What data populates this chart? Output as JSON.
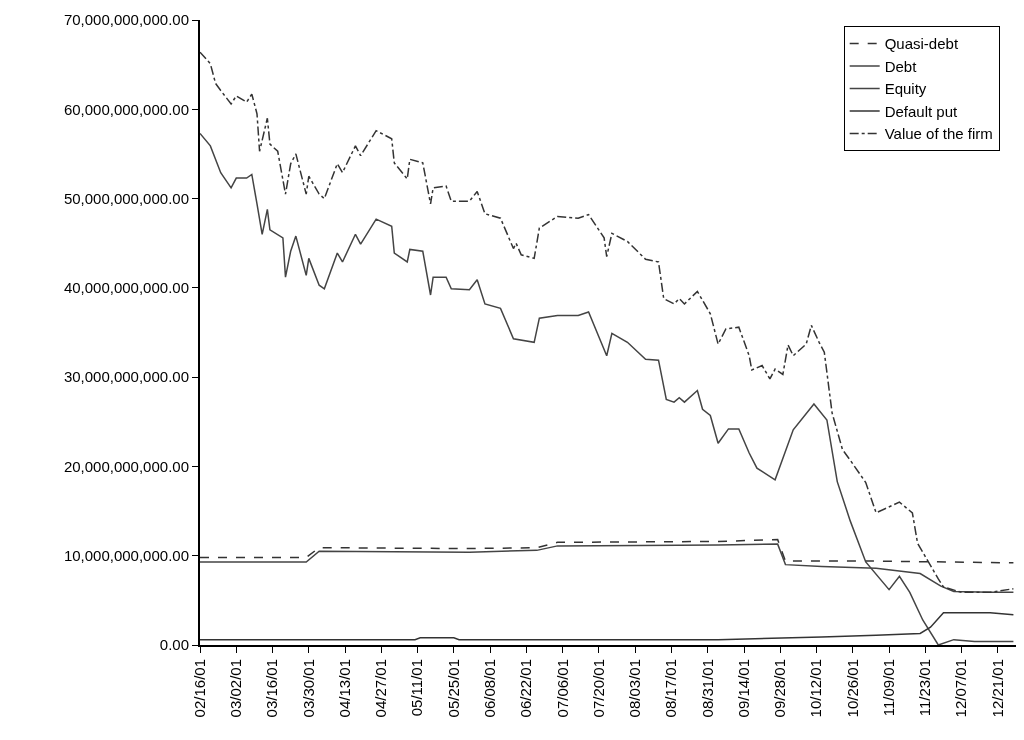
{
  "chart_data": {
    "type": "line",
    "legend": "top right",
    "grid": false,
    "marker": "none",
    "xlim": [
      "--02-16",
      "--12-28"
    ],
    "xticks": [
      {
        "value": "--02-16",
        "label": "02/16/01"
      },
      {
        "value": "--03-02",
        "label": "03/02/01"
      },
      {
        "value": "--03-16",
        "label": "03/16/01"
      },
      {
        "value": "--03-30",
        "label": "03/30/01"
      },
      {
        "value": "--04-13",
        "label": "04/13/01"
      },
      {
        "value": "--04-27",
        "label": "04/27/01"
      },
      {
        "value": "--05-11",
        "label": "05/11/01"
      },
      {
        "value": "--05-25",
        "label": "05/25/01"
      },
      {
        "value": "--06-08",
        "label": "06/08/01"
      },
      {
        "value": "--06-22",
        "label": "06/22/01"
      },
      {
        "value": "--07-06",
        "label": "07/06/01"
      },
      {
        "value": "--07-20",
        "label": "07/20/01"
      },
      {
        "value": "--08-03",
        "label": "08/03/01"
      },
      {
        "value": "--08-17",
        "label": "08/17/01"
      },
      {
        "value": "--08-31",
        "label": "08/31/01"
      },
      {
        "value": "--09-14",
        "label": "09/14/01"
      },
      {
        "value": "--09-28",
        "label": "09/28/01"
      },
      {
        "value": "--10-12",
        "label": "10/12/01"
      },
      {
        "value": "--10-26",
        "label": "10/26/01"
      },
      {
        "value": "--11-09",
        "label": "11/09/01"
      },
      {
        "value": "--11-23",
        "label": "11/23/01"
      },
      {
        "value": "--12-07",
        "label": "12/07/01"
      },
      {
        "value": "--12-21",
        "label": "12/21/01"
      }
    ],
    "ylim": [
      0,
      70000000000
    ],
    "yticks": [
      {
        "value": 0,
        "label": "0.00"
      },
      {
        "value": 10000000000,
        "label": "10,000,000,000.00"
      },
      {
        "value": 20000000000,
        "label": "20,000,000,000.00"
      },
      {
        "value": 30000000000,
        "label": "30,000,000,000.00"
      },
      {
        "value": 40000000000,
        "label": "40,000,000,000.00"
      },
      {
        "value": 50000000000,
        "label": "50,000,000,000.00"
      },
      {
        "value": 60000000000,
        "label": "60,000,000,000.00"
      },
      {
        "value": 70000000000,
        "label": "70,000,000,000.00"
      }
    ],
    "series": [
      {
        "name": "Quasi-debt",
        "color": "#333333",
        "line_style": "dashed",
        "x": [
          "--02-16",
          "--03-29",
          "--04-03",
          "--05-31",
          "--06-26",
          "--07-04",
          "--09-04",
          "--09-27",
          "--09-30",
          "--11-04",
          "--12-27"
        ],
        "values": [
          9800000000,
          9800000000,
          10900000000,
          10800000000,
          10900000000,
          11500000000,
          11600000000,
          11800000000,
          9400000000,
          9400000000,
          9200000000
        ]
      },
      {
        "name": "Debt",
        "color": "#444444",
        "line_style": "solid",
        "x": [
          "--02-16",
          "--03-29",
          "--04-03",
          "--05-31",
          "--06-26",
          "--07-04",
          "--09-04",
          "--09-27",
          "--09-30",
          "--10-14",
          "--11-04",
          "--11-21",
          "--11-29",
          "--12-04",
          "--12-18",
          "--12-27"
        ],
        "values": [
          9300000000,
          9300000000,
          10500000000,
          10400000000,
          10600000000,
          11100000000,
          11200000000,
          11300000000,
          9000000000,
          8800000000,
          8600000000,
          8000000000,
          6600000000,
          6000000000,
          5900000000,
          5900000000
        ]
      },
      {
        "name": "Equity",
        "color": "#444444",
        "line_style": "solid",
        "x": [
          "--02-16",
          "--02-20",
          "--02-24",
          "--02-28",
          "--03-02",
          "--03-06",
          "--03-08",
          "--03-10",
          "--03-12",
          "--03-14",
          "--03-15",
          "--03-20",
          "--03-21",
          "--03-23",
          "--03-25",
          "--03-29",
          "--03-30",
          "--04-03",
          "--04-05",
          "--04-10",
          "--04-12",
          "--04-17",
          "--04-19",
          "--04-25",
          "--05-01",
          "--05-02",
          "--05-07",
          "--05-08",
          "--05-13",
          "--05-16",
          "--05-17",
          "--05-22",
          "--05-24",
          "--05-31",
          "--06-03",
          "--06-06",
          "--06-12",
          "--06-17",
          "--06-25",
          "--06-27",
          "--07-04",
          "--07-12",
          "--07-16",
          "--07-23",
          "--07-25",
          "--07-31",
          "--08-07",
          "--08-12",
          "--08-15",
          "--08-18",
          "--08-20",
          "--08-22",
          "--08-27",
          "--08-29",
          "--09-01",
          "--09-04",
          "--09-08",
          "--09-12",
          "--09-16",
          "--09-19",
          "--09-26",
          "--10-03",
          "--10-11",
          "--10-16",
          "--10-20",
          "--10-25",
          "--10-31",
          "--11-09",
          "--11-13",
          "--11-17",
          "--11-22",
          "--11-28",
          "--12-04",
          "--12-12",
          "--12-27"
        ],
        "values": [
          57300000000,
          55900000000,
          52900000000,
          51200000000,
          52300000000,
          52300000000,
          52700000000,
          49400000000,
          46000000000,
          48800000000,
          46500000000,
          45600000000,
          41200000000,
          44100000000,
          45800000000,
          41400000000,
          43300000000,
          40300000000,
          39900000000,
          43900000000,
          42900000000,
          46000000000,
          44900000000,
          47700000000,
          46900000000,
          43900000000,
          42900000000,
          44300000000,
          44100000000,
          39200000000,
          41200000000,
          41200000000,
          39900000000,
          39800000000,
          40900000000,
          38200000000,
          37700000000,
          34300000000,
          33900000000,
          36600000000,
          36900000000,
          36900000000,
          37300000000,
          32400000000,
          34900000000,
          33900000000,
          32000000000,
          31900000000,
          27500000000,
          27200000000,
          27700000000,
          27200000000,
          28500000000,
          26400000000,
          25700000000,
          22600000000,
          24200000000,
          24200000000,
          21500000000,
          19800000000,
          18500000000,
          24100000000,
          27000000000,
          25200000000,
          18300000000,
          13900000000,
          9300000000,
          6200000000,
          7700000000,
          5900000000,
          2800000000,
          0,
          600000000,
          400000000,
          400000000
        ]
      },
      {
        "name": "Default put",
        "color": "#333333",
        "line_style": "solid",
        "x": [
          "--02-16",
          "--05-10",
          "--05-12",
          "--05-25",
          "--05-27",
          "--09-04",
          "--10-14",
          "--11-04",
          "--11-21",
          "--11-25",
          "--11-30",
          "--12-18",
          "--12-27"
        ],
        "values": [
          600000000,
          600000000,
          800000000,
          800000000,
          600000000,
          600000000,
          900000000,
          1100000000,
          1300000000,
          2000000000,
          3600000000,
          3600000000,
          3400000000
        ]
      },
      {
        "name": "Value of the firm",
        "color": "#333333",
        "line_style": "dashdot",
        "x": [
          "--02-16",
          "--02-20",
          "--02-22",
          "--02-24",
          "--02-28",
          "--03-02",
          "--03-06",
          "--03-08",
          "--03-10",
          "--03-11",
          "--03-14",
          "--03-15",
          "--03-18",
          "--03-21",
          "--03-23",
          "--03-25",
          "--03-29",
          "--03-30",
          "--04-03",
          "--04-05",
          "--04-10",
          "--04-12",
          "--04-17",
          "--04-19",
          "--04-25",
          "--05-01",
          "--05-02",
          "--05-07",
          "--05-08",
          "--05-13",
          "--05-16",
          "--05-17",
          "--05-22",
          "--05-24",
          "--05-31",
          "--06-03",
          "--06-06",
          "--06-12",
          "--06-17",
          "--06-18",
          "--06-20",
          "--06-25",
          "--06-27",
          "--07-04",
          "--07-12",
          "--07-16",
          "--07-22",
          "--07-23",
          "--07-25",
          "--07-31",
          "--08-07",
          "--08-12",
          "--08-14",
          "--08-18",
          "--08-20",
          "--08-22",
          "--08-27",
          "--09-01",
          "--09-04",
          "--09-07",
          "--09-12",
          "--09-16",
          "--09-17",
          "--09-21",
          "--09-24",
          "--09-26",
          "--09-29",
          "--10-01",
          "--10-03",
          "--10-08",
          "--10-10",
          "--10-13",
          "--10-15",
          "--10-18",
          "--10-22",
          "--10-25",
          "--10-31",
          "--11-04",
          "--11-13",
          "--11-18",
          "--11-20",
          "--11-28",
          "--11-30",
          "--12-07",
          "--12-18",
          "--12-27"
        ],
        "values": [
          66400000000,
          65100000000,
          62900000000,
          62100000000,
          60600000000,
          61500000000,
          60800000000,
          61700000000,
          59500000000,
          55300000000,
          59000000000,
          56100000000,
          55300000000,
          50500000000,
          53900000000,
          55000000000,
          50500000000,
          52500000000,
          50500000000,
          50000000000,
          53900000000,
          52900000000,
          55900000000,
          54800000000,
          57600000000,
          56700000000,
          54000000000,
          52200000000,
          54400000000,
          54000000000,
          49400000000,
          51200000000,
          51400000000,
          49700000000,
          49700000000,
          50800000000,
          48300000000,
          47800000000,
          44400000000,
          45000000000,
          43700000000,
          43300000000,
          46700000000,
          48000000000,
          47800000000,
          48200000000,
          45600000000,
          43500000000,
          46100000000,
          45200000000,
          43200000000,
          42900000000,
          38800000000,
          38200000000,
          38800000000,
          38200000000,
          39600000000,
          37100000000,
          33700000000,
          35400000000,
          35600000000,
          32400000000,
          30800000000,
          31300000000,
          29800000000,
          30900000000,
          30300000000,
          33600000000,
          32400000000,
          33700000000,
          35800000000,
          33900000000,
          32800000000,
          26000000000,
          21900000000,
          20700000000,
          18200000000,
          14800000000,
          16000000000,
          14800000000,
          11400000000,
          7400000000,
          6500000000,
          5900000000,
          5900000000,
          6300000000
        ]
      }
    ]
  }
}
